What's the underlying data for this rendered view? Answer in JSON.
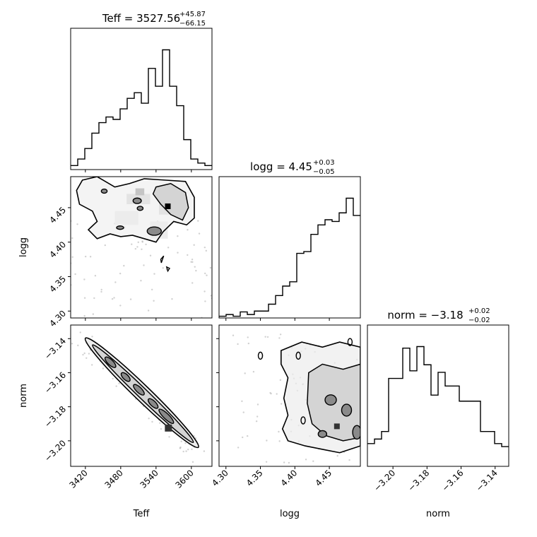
{
  "chart_data": [
    {
      "type": "histogram",
      "panel": "Teff",
      "title": {
        "prefix": "Teff = 3527.56",
        "sup": "+45.87",
        "sub": "−66.15"
      },
      "xlim": [
        3395,
        3635
      ],
      "x_ticks": [
        "3420",
        "3480",
        "3540",
        "3600"
      ],
      "x_tick_values": [
        3420,
        3480,
        3540,
        3600
      ],
      "bin_edges": [
        3395,
        3407,
        3419,
        3431,
        3443,
        3455,
        3467,
        3479,
        3491,
        3503,
        3515,
        3527,
        3539,
        3551,
        3563,
        3575,
        3587,
        3599,
        3611,
        3623,
        3635
      ],
      "counts": [
        5,
        13,
        26,
        45,
        58,
        65,
        62,
        75,
        88,
        95,
        82,
        125,
        103,
        148,
        103,
        79,
        37,
        13,
        8,
        5
      ]
    },
    {
      "type": "histogram",
      "panel": "logg",
      "title": {
        "prefix": "logg = 4.45",
        "sup": "+0.03",
        "sub": "−0.05"
      },
      "xlim": [
        4.29,
        4.495
      ],
      "x_ticks": [
        "4.30",
        "4.35",
        "4.40",
        "4.45"
      ],
      "x_tick_values": [
        4.3,
        4.35,
        4.4,
        4.45
      ],
      "bin_edges": [
        4.29,
        4.30025,
        4.3105,
        4.32075,
        4.331,
        4.34125,
        4.3515,
        4.36175,
        4.372,
        4.38225,
        4.3925,
        4.40275,
        4.413,
        4.42325,
        4.4335,
        4.44375,
        4.454,
        4.46425,
        4.4745,
        4.48475,
        4.495
      ],
      "counts": [
        2,
        4,
        2,
        7,
        4,
        8,
        8,
        16,
        26,
        37,
        42,
        75,
        77,
        97,
        108,
        114,
        112,
        122,
        139,
        119
      ]
    },
    {
      "type": "histogram",
      "panel": "norm",
      "title": {
        "prefix": "norm = −3.18",
        "sup": "+0.02",
        "sub": "−0.02"
      },
      "xlim": [
        -3.215,
        -3.132
      ],
      "x_ticks": [
        "−3.20",
        "−3.18",
        "−3.16",
        "−3.14"
      ],
      "x_tick_values": [
        -3.2,
        -3.18,
        -3.16,
        -3.14
      ],
      "bin_edges": [
        -3.215,
        -3.21085,
        -3.2067,
        -3.20255,
        -3.1984,
        -3.19425,
        -3.1901,
        -3.18595,
        -3.1818,
        -3.17765,
        -3.1735,
        -3.16935,
        -3.1652,
        -3.16105,
        -3.1569,
        -3.15275,
        -3.1486,
        -3.14445,
        -3.1403,
        -3.13615,
        -3.132
      ],
      "counts": [
        15,
        18,
        23,
        58,
        58,
        78,
        63,
        79,
        67,
        47,
        62,
        53,
        53,
        43,
        43,
        43,
        23,
        23,
        15,
        13
      ]
    },
    {
      "type": "contour",
      "panel": "logg vs Teff",
      "xlim": [
        3395,
        3635
      ],
      "ylim": [
        4.29,
        4.495
      ],
      "x_ticks": [
        "3420",
        "3480",
        "3540",
        "3600"
      ],
      "x_tick_values": [
        3420,
        3480,
        3540,
        3600
      ],
      "y_ticks": [
        "4.30",
        "4.35",
        "4.40",
        "4.45"
      ],
      "y_tick_values": [
        4.3,
        4.35,
        4.4,
        4.45
      ],
      "ylabel": "logg",
      "peak": [
        3560,
        4.452
      ],
      "dark_blobs": [
        [
          3452,
          4.474,
          5,
          0.003
        ],
        [
          3508,
          4.46,
          7,
          0.004
        ],
        [
          3513,
          4.449,
          5,
          0.003
        ],
        [
          3479,
          4.421,
          6,
          0.0025
        ],
        [
          3537,
          4.416,
          12,
          0.006
        ]
      ]
    },
    {
      "type": "contour",
      "panel": "norm vs Teff",
      "xlim": [
        3395,
        3635
      ],
      "ylim": [
        -3.215,
        -3.132
      ],
      "x_ticks": [
        "3420",
        "3480",
        "3540",
        "3600"
      ],
      "x_tick_values": [
        3420,
        3480,
        3540,
        3600
      ],
      "y_ticks": [
        "−3.14",
        "−3.16",
        "−3.18",
        "−3.20"
      ],
      "y_tick_values": [
        -3.14,
        -3.16,
        -3.18,
        -3.2
      ],
      "xlabel": "Teff",
      "ylabel": "norm",
      "band": {
        "x1": 3427,
        "y1": -3.142,
        "x2": 3605,
        "y2": -3.2015
      },
      "peak": [
        3561,
        -3.1925
      ]
    },
    {
      "type": "contour",
      "panel": "norm vs logg",
      "xlim": [
        4.29,
        4.495
      ],
      "ylim": [
        -3.215,
        -3.132
      ],
      "x_ticks": [
        "4.30",
        "4.35",
        "4.40",
        "4.45"
      ],
      "x_tick_values": [
        4.3,
        4.35,
        4.4,
        4.45
      ],
      "xlabel": "logg",
      "peak": [
        4.461,
        -3.1915
      ]
    }
  ],
  "axis_labels": {
    "teff": "Teff",
    "logg": "logg",
    "norm": "norm"
  },
  "colors": {
    "line": "#000000",
    "shade_dark": "#333333",
    "shade_mid": "#8a8a8a",
    "shade_light": "#d4d4d4",
    "shade_faint": "#ececec",
    "points": "#bdbdbd"
  }
}
